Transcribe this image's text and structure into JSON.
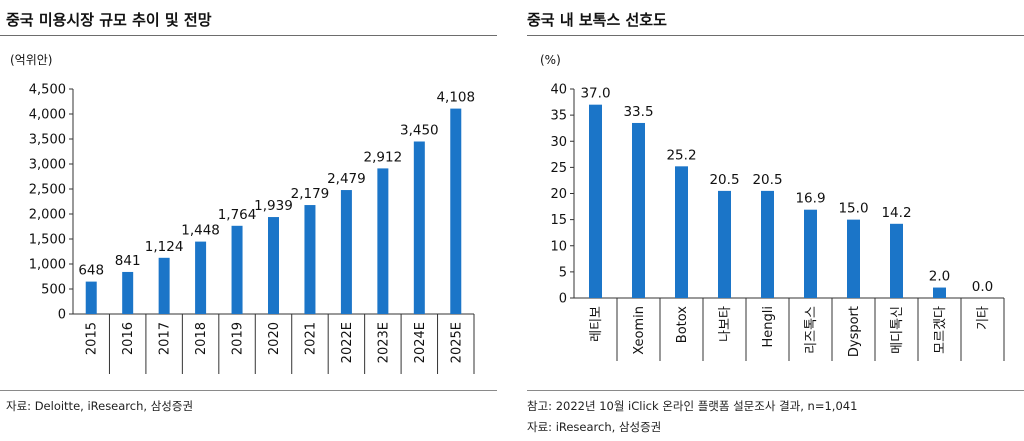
{
  "colors": {
    "bar": "#1b75c8",
    "axis": "#333333",
    "rule": "#6d6d6d"
  },
  "left": {
    "title": "중국 미용시장 규모 추이 및 전망",
    "notes": [
      "자료: Deloitte, iResearch, 삼성증권"
    ]
  },
  "right": {
    "title": "중국 내 보톡스 선호도",
    "notes": [
      "참고: 2022년 10월 iClick 온라인 플랫폼 설문조사 결과, n=1,041",
      "자료: iResearch, 삼성증권"
    ]
  },
  "chart_data": [
    {
      "type": "bar",
      "title": "중국 미용시장 규모 추이 및 전망",
      "unit_label": "(억위안)",
      "categories": [
        "2015",
        "2016",
        "2017",
        "2018",
        "2019",
        "2020",
        "2021",
        "2022E",
        "2023E",
        "2024E",
        "2025E"
      ],
      "values": [
        648,
        841,
        1124,
        1448,
        1764,
        1939,
        2179,
        2479,
        2912,
        3450,
        4108
      ],
      "data_labels": [
        "648",
        "841",
        "1,124",
        "1,448",
        "1,764",
        "1,939",
        "2,179",
        "2,479",
        "2,912",
        "3,450",
        "4,108"
      ],
      "ylim": [
        0,
        4500
      ],
      "yticks": [
        0,
        500,
        1000,
        1500,
        2000,
        2500,
        3000,
        3500,
        4000,
        4500
      ],
      "ytick_labels": [
        "0",
        "500",
        "1,000",
        "1,500",
        "2,000",
        "2,500",
        "3,000",
        "3,500",
        "4,000",
        "4,500"
      ],
      "grid": false,
      "xtick_rotation": "vertical"
    },
    {
      "type": "bar",
      "title": "중국 내 보톡스 선호도",
      "unit_label": "(%)",
      "categories": [
        "레티보",
        "Xeomin",
        "Botox",
        "나보타",
        "Hengli",
        "리즈톡스",
        "Dysport",
        "메디톡신",
        "모르겠다",
        "기타"
      ],
      "values": [
        37.0,
        33.5,
        25.2,
        20.5,
        20.5,
        16.9,
        15.0,
        14.2,
        2.0,
        0.0
      ],
      "data_labels": [
        "37.0",
        "33.5",
        "25.2",
        "20.5",
        "20.5",
        "16.9",
        "15.0",
        "14.2",
        "2.0",
        "0.0"
      ],
      "ylim": [
        0,
        40
      ],
      "yticks": [
        0,
        5,
        10,
        15,
        20,
        25,
        30,
        35,
        40
      ],
      "ytick_labels": [
        "0",
        "5",
        "10",
        "15",
        "20",
        "25",
        "30",
        "35",
        "40"
      ],
      "grid": false,
      "xtick_rotation": "vertical"
    }
  ]
}
